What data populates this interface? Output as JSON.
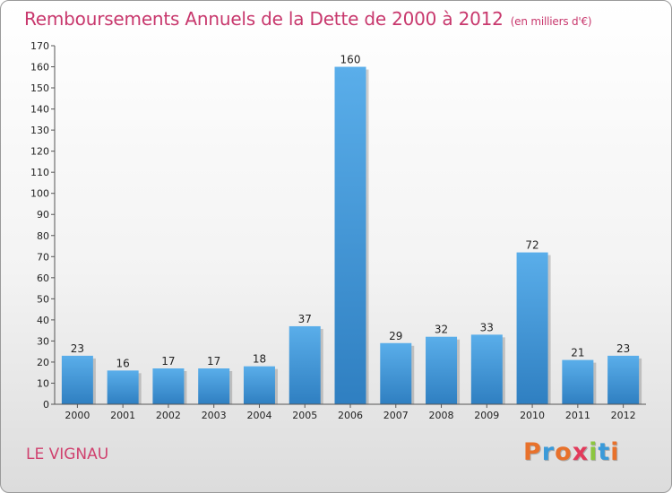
{
  "title": "Remboursements Annuels de la Dette de 2000 à 2012",
  "subtitle": "(en milliers d'€)",
  "commune": "LE VIGNAU",
  "logo": {
    "letters": [
      "P",
      "r",
      "o",
      "x",
      "i",
      "t",
      "i"
    ],
    "colors": [
      "#e8712b",
      "#3a9ad9",
      "#e8712b",
      "#e23a5b",
      "#8cc63f",
      "#3a9ad9",
      "#e8712b"
    ]
  },
  "colors": {
    "title": "#c8386d",
    "bar_top": "#5aaeea",
    "bar_bottom": "#2f7fc1"
  },
  "chart_data": {
    "type": "bar",
    "categories": [
      "2000",
      "2001",
      "2002",
      "2003",
      "2004",
      "2005",
      "2006",
      "2007",
      "2008",
      "2009",
      "2010",
      "2011",
      "2012"
    ],
    "values": [
      23,
      16,
      17,
      17,
      18,
      37,
      160,
      29,
      32,
      33,
      72,
      21,
      23
    ],
    "ylim": [
      0,
      170
    ],
    "yticks": [
      0,
      10,
      20,
      30,
      40,
      50,
      60,
      70,
      80,
      90,
      100,
      110,
      120,
      130,
      140,
      150,
      160,
      170
    ],
    "grid": false,
    "data_labels": true
  }
}
